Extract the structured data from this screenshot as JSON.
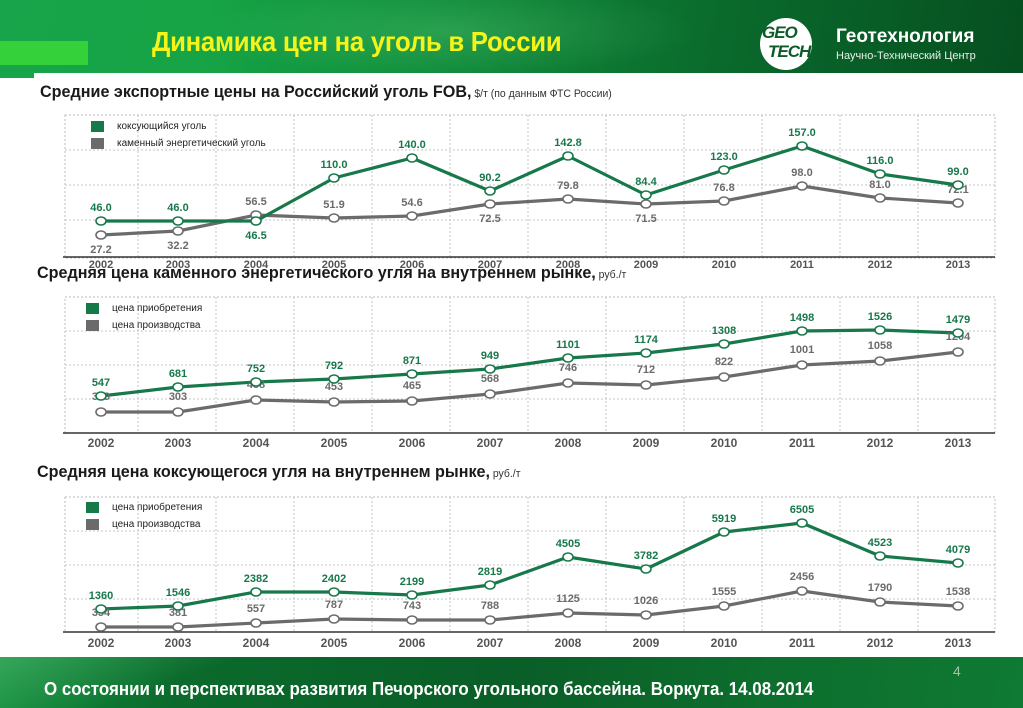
{
  "header": {
    "title": "Динамика цен на уголь в России",
    "logo": {
      "mark_line1": "GEO",
      "mark_line2": "TECH",
      "name": "Геотехнология",
      "subtitle": "Научно-Технический Центр"
    }
  },
  "footer": {
    "text": "О состоянии и перспективах развития Печорского угольного бассейна. Воркута. 14.08.2014",
    "page_number": "4"
  },
  "colors": {
    "series_green": "#17784a",
    "series_gray": "#6b6b6b",
    "title_yellow": "#f4f41a",
    "header_green": "#0f8a3a",
    "accent_green": "#35d13b"
  },
  "chart_data": [
    {
      "type": "line",
      "title": "Средние экспортные цены на Российский уголь FOB,",
      "unit": "$/т (по данным ФТС России)",
      "xlabel": "",
      "ylabel": "$/т",
      "grid": true,
      "legend_position": "top-left",
      "categories": [
        "2002",
        "2003",
        "2004",
        "2005",
        "2006",
        "2007",
        "2008",
        "2009",
        "2010",
        "2011",
        "2012",
        "2013"
      ],
      "series": [
        {
          "name": "коксующийся уголь",
          "color": "#17784a",
          "values": [
            46.0,
            46.0,
            46.5,
            110.0,
            140.0,
            90.2,
            142.8,
            84.4,
            123.0,
            157.0,
            116.0,
            99.0
          ],
          "labels": [
            "46.0",
            "46.0",
            "46.5",
            "110.0",
            "140.0",
            "90.2",
            "142.8",
            "84.4",
            "123.0",
            "157.0",
            "116.0",
            "99.0"
          ]
        },
        {
          "name": "каменный энергетический уголь",
          "color": "#6b6b6b",
          "values": [
            27.2,
            32.2,
            56.5,
            51.9,
            54.6,
            72.5,
            79.8,
            71.5,
            76.8,
            98.0,
            81.0,
            72.1
          ],
          "labels": [
            "27.2",
            "32.2",
            "56.5",
            "51.9",
            "54.6",
            "72.5",
            "79.8",
            "71.5",
            "76.8",
            "98.0",
            "81.0",
            "72.1"
          ]
        }
      ]
    },
    {
      "type": "line",
      "title": "Средняя цена каменного энергетического угля на внутреннем рынке,",
      "unit": "руб./т",
      "xlabel": "",
      "ylabel": "руб./т",
      "grid": true,
      "legend_position": "top-left",
      "categories": [
        "2002",
        "2003",
        "2004",
        "2005",
        "2006",
        "2007",
        "2008",
        "2009",
        "2010",
        "2011",
        "2012",
        "2013"
      ],
      "series": [
        {
          "name": "цена приобретения",
          "color": "#17784a",
          "values": [
            547,
            681,
            752,
            792,
            871,
            949,
            1101,
            1174,
            1308,
            1498,
            1526,
            1479
          ],
          "labels": [
            "547",
            "681",
            "752",
            "792",
            "871",
            "949",
            "1101",
            "1174",
            "1308",
            "1498",
            "1526",
            "1479"
          ]
        },
        {
          "name": "цена производства",
          "color": "#6b6b6b",
          "values": [
            309,
            303,
            488,
            453,
            465,
            568,
            746,
            712,
            822,
            1001,
            1058,
            1204
          ],
          "labels": [
            "309",
            "303",
            "488",
            "453",
            "465",
            "568",
            "746",
            "712",
            "822",
            "1001",
            "1058",
            "1204"
          ]
        }
      ]
    },
    {
      "type": "line",
      "title": "Средняя цена коксующегося угля на внутреннем рынке,",
      "unit": "руб./т",
      "xlabel": "",
      "ylabel": "руб./т",
      "grid": true,
      "legend_position": "top-left",
      "categories": [
        "2002",
        "2003",
        "2004",
        "2005",
        "2006",
        "2007",
        "2008",
        "2009",
        "2010",
        "2011",
        "2012",
        "2013"
      ],
      "series": [
        {
          "name": "цена приобретения",
          "color": "#17784a",
          "values": [
            1360,
            1546,
            2382,
            2402,
            2199,
            2819,
            4505,
            3782,
            5919,
            6505,
            4523,
            4079
          ],
          "labels": [
            "1360",
            "1546",
            "2382",
            "2402",
            "2199",
            "2819",
            "4505",
            "3782",
            "5919",
            "6505",
            "4523",
            "4079"
          ]
        },
        {
          "name": "цена производства",
          "color": "#6b6b6b",
          "values": [
            354,
            381,
            557,
            787,
            743,
            788,
            1125,
            1026,
            1555,
            2456,
            1790,
            1538
          ],
          "labels": [
            "354",
            "381",
            "557",
            "787",
            "743",
            "788",
            "1125",
            "1026",
            "1555",
            "2456",
            "1790",
            "1538"
          ]
        }
      ]
    }
  ]
}
